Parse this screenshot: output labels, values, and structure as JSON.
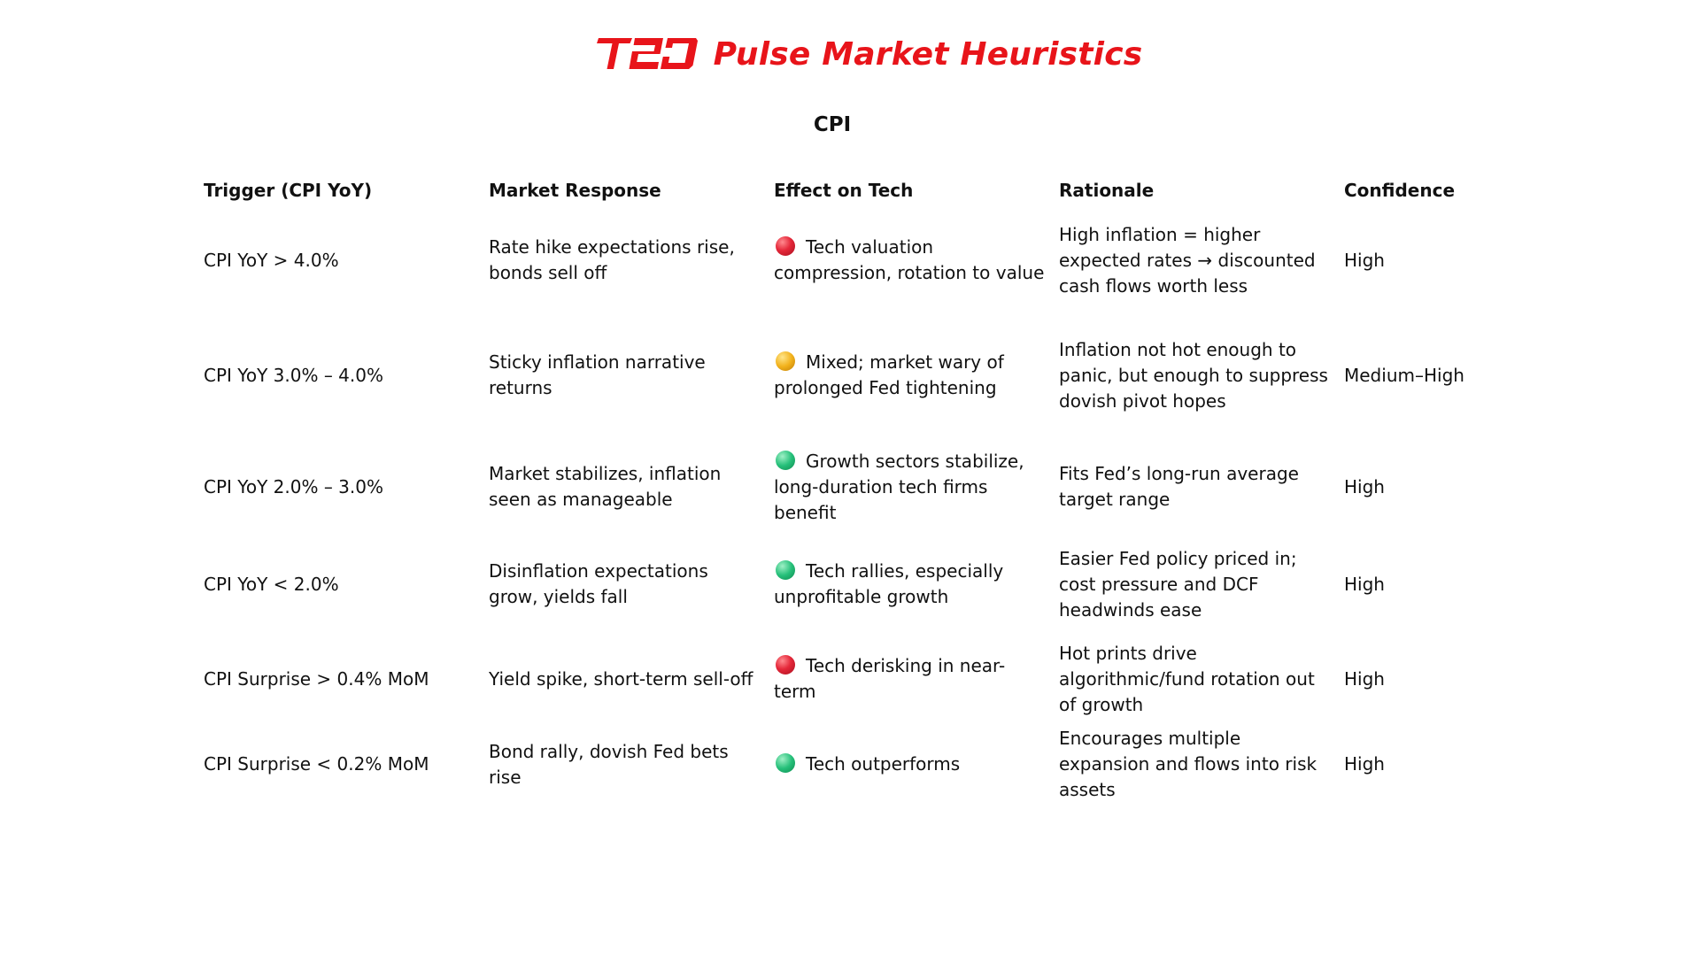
{
  "brand": {
    "logo_text": "T2D",
    "title": "Pulse Market Heuristics",
    "color": "#e8141a"
  },
  "section_title": "CPI",
  "table": {
    "headers": [
      "Trigger (CPI YoY)",
      "Market Response",
      "Effect on Tech",
      "Rationale",
      "Confidence"
    ],
    "rows": [
      {
        "trigger": "CPI YoY > 4.0%",
        "response": "Rate hike expectations rise, bonds sell off",
        "effect_icon": "red-circle-icon",
        "effect": "Tech valuation compression, rotation to value",
        "rationale": "High inflation = higher expected rates → discounted cash flows worth less",
        "confidence": "High"
      },
      {
        "trigger": "CPI YoY 3.0% – 4.0%",
        "response": "Sticky inflation narrative returns",
        "effect_icon": "yellow-circle-icon",
        "effect": "Mixed; market wary of prolonged Fed tightening",
        "rationale": "Inflation not hot enough to panic, but enough to suppress dovish pivot hopes",
        "confidence": "Medium–High"
      },
      {
        "trigger": "CPI YoY 2.0% – 3.0%",
        "response": "Market stabilizes, inflation seen as manageable",
        "effect_icon": "green-circle-icon",
        "effect": "Growth sectors stabilize, long-duration tech firms benefit",
        "rationale": "Fits Fed’s long-run average target range",
        "confidence": "High"
      },
      {
        "trigger": "CPI YoY < 2.0%",
        "response": "Disinflation expectations grow, yields fall",
        "effect_icon": "green-circle-icon",
        "effect": "Tech rallies, especially unprofitable growth",
        "rationale": "Easier Fed policy priced in; cost pressure and DCF headwinds ease",
        "confidence": "High"
      },
      {
        "trigger": "CPI Surprise > 0.4% MoM",
        "response": "Yield spike, short-term sell-off",
        "effect_icon": "red-circle-icon",
        "effect": "Tech derisking in near-term",
        "rationale": "Hot prints drive algorithmic/fund rotation out of growth",
        "confidence": "High"
      },
      {
        "trigger": "CPI Surprise < 0.2% MoM",
        "response": "Bond rally, dovish Fed bets rise",
        "effect_icon": "green-circle-icon",
        "effect": "Tech outperforms",
        "rationale": "Encourages multiple expansion and flows into risk assets",
        "confidence": "High"
      }
    ]
  }
}
